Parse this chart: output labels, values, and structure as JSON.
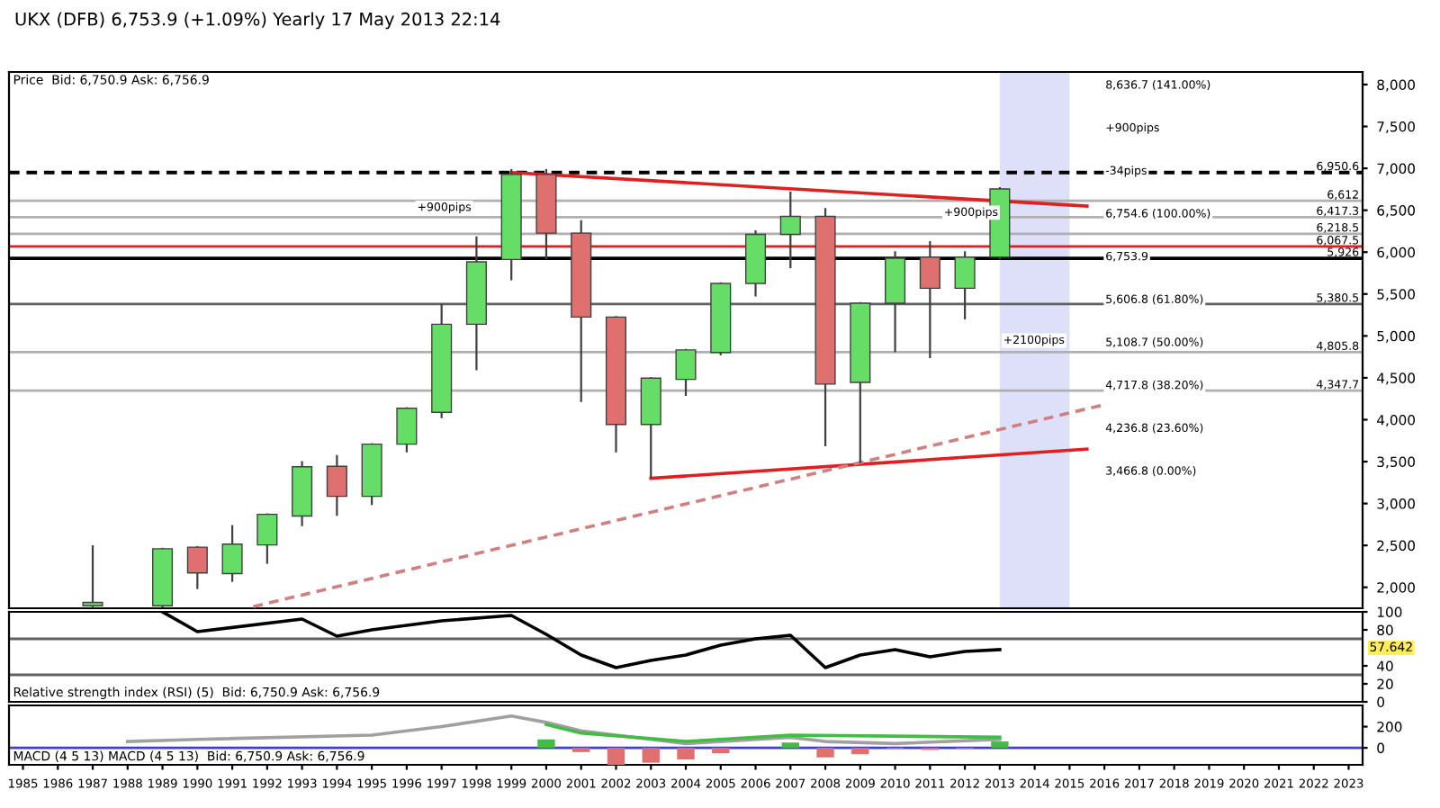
{
  "chart_data": [
    {
      "type": "candlestick",
      "title": "UKX (DFB) 6,753.9 (+1.09%) Yearly 17 May 2013 22:14",
      "subtitle": "Price  Bid: 6,750.9 Ask: 6,756.9",
      "x": [
        1987,
        1989,
        1990,
        1991,
        1992,
        1993,
        1994,
        1995,
        1996,
        1997,
        1998,
        1999,
        2000,
        2001,
        2002,
        2003,
        2004,
        2005,
        2006,
        2007,
        2008,
        2009,
        2010,
        2011,
        2012,
        2013
      ],
      "ohlc": [
        [
          1780,
          2490,
          1760,
          1820
        ],
        [
          1780,
          2460,
          1770,
          2460
        ],
        [
          2479,
          2479,
          1991,
          2172
        ],
        [
          2163,
          2730,
          2077,
          2515
        ],
        [
          2506,
          2871,
          2292,
          2871
        ],
        [
          2850,
          3494,
          2742,
          3438
        ],
        [
          3444,
          3567,
          2865,
          3086
        ],
        [
          3086,
          3708,
          2994,
          3708
        ],
        [
          3708,
          4137,
          3622,
          4137
        ],
        [
          4088,
          5369,
          4030,
          5139
        ],
        [
          5139,
          6176,
          4603,
          5884
        ],
        [
          5912,
          6979,
          5676,
          6927
        ],
        [
          6927,
          6979,
          5927,
          6227
        ],
        [
          6227,
          6369,
          4223,
          5225
        ],
        [
          5225,
          5225,
          3622,
          3944
        ],
        [
          3944,
          4496,
          3316,
          4496
        ],
        [
          4481,
          4833,
          4296,
          4833
        ],
        [
          4803,
          5627,
          4781,
          5627
        ],
        [
          5627,
          6249,
          5483,
          6212
        ],
        [
          6212,
          6712,
          5820,
          6427
        ],
        [
          6427,
          6513,
          3695,
          4425
        ],
        [
          4446,
          5391,
          3494,
          5391
        ],
        [
          5391,
          5998,
          4818,
          5927
        ],
        [
          5940,
          6120,
          4747,
          5569
        ],
        [
          5569,
          5998,
          5210,
          5940
        ],
        [
          5940,
          6764,
          5925,
          6754
        ]
      ],
      "colors": [
        "#66dd66",
        "#66dd66",
        "#e07070",
        "#66dd66",
        "#66dd66",
        "#66dd66",
        "#e07070",
        "#66dd66",
        "#66dd66",
        "#66dd66",
        "#66dd66",
        "#66dd66",
        "#e07070",
        "#e07070",
        "#e07070",
        "#66dd66",
        "#66dd66",
        "#66dd66",
        "#66dd66",
        "#66dd66",
        "#e07070",
        "#66dd66",
        "#66dd66",
        "#e07070",
        "#66dd66",
        "#66dd66"
      ],
      "series": [
        {
          "type": "line",
          "color": "#e02020",
          "x": [
            1999,
            2015.5
          ],
          "values": [
            6950,
            6550
          ],
          "line_style": "solid"
        },
        {
          "type": "line",
          "color": "#e02020",
          "x": [
            2003,
            2015.5
          ],
          "values": [
            3300,
            3650
          ],
          "line_style": "solid"
        },
        {
          "type": "line",
          "color": "#d08080",
          "x": [
            1991.6,
            2015.9
          ],
          "values": [
            1770,
            4170
          ],
          "line_style": "dashed"
        }
      ],
      "ref_lines": [
        {
          "axis": "y",
          "value": 6950.6,
          "label": "6,950.6",
          "color": "#000000",
          "line_style": "dashed"
        },
        {
          "axis": "y",
          "value": 6612,
          "label": "6,612",
          "color": "#b0b0b0",
          "line_style": "solid"
        },
        {
          "axis": "y",
          "value": 6417.3,
          "label": "6,417.3",
          "color": "#b0b0b0",
          "line_style": "solid"
        },
        {
          "axis": "y",
          "value": 6218.5,
          "label": "6,218.5",
          "color": "#b0b0b0",
          "line_style": "solid"
        },
        {
          "axis": "y",
          "value": 6067.5,
          "label": "6,067.5",
          "color": "#e02020",
          "line_style": "solid"
        },
        {
          "axis": "y",
          "value": 5926,
          "label": "5,926",
          "color": "#000000",
          "line_style": "solid"
        },
        {
          "axis": "y",
          "value": 5380.5,
          "label": "5,380.5",
          "color": "#606060",
          "line_style": "solid"
        },
        {
          "axis": "y",
          "value": 4805.8,
          "label": "4,805.8",
          "color": "#b0b0b0",
          "line_style": "solid"
        },
        {
          "axis": "y",
          "value": 4347.7,
          "label": "4,347.7",
          "color": "#b0b0b0",
          "line_style": "solid"
        }
      ],
      "bands": [
        {
          "axis": "x",
          "from": 2013,
          "to": 2015,
          "color": "#dde0f8"
        }
      ],
      "annotations": [
        "8,636.7 (141.00%)",
        "+900pips",
        "-34pips",
        "6,754.6 (100.00%)",
        "6,753.9",
        "5,606.8 (61.80%)",
        "5,108.7 (50.00%)",
        "4,717.8 (38.20%)",
        "4,236.8 (23.60%)",
        "3,466.8 (0.00%)",
        {
          "text": "+900pips",
          "x": 1996.3,
          "y": 6530
        },
        {
          "text": "+900pips",
          "x": 2011.4,
          "y": 6470
        },
        {
          "text": "+2100pips",
          "x": 2013.1,
          "y": 4945
        }
      ],
      "xlim": [
        1984.6,
        2023.4
      ],
      "ylim": [
        1750,
        8150
      ],
      "yticks": [
        {
          "value": 2000,
          "label": "2,000"
        },
        {
          "value": 2500,
          "label": "2,500"
        },
        {
          "value": 3000,
          "label": "3,000"
        },
        {
          "value": 3500,
          "label": "3,500"
        },
        {
          "value": 4000,
          "label": "4,000"
        },
        {
          "value": 4500,
          "label": "4,500"
        },
        {
          "value": 5000,
          "label": "5,000"
        },
        {
          "value": 5500,
          "label": "5,500"
        },
        {
          "value": 6000,
          "label": "6,000"
        },
        {
          "value": 6500,
          "label": "6,500"
        },
        {
          "value": 7000,
          "label": "7,000"
        },
        {
          "value": 7500,
          "label": "7,500"
        },
        {
          "value": 8000,
          "label": "8,000"
        }
      ],
      "tick_labels": "y",
      "grid": false
    },
    {
      "type": "line",
      "title": "Relative strength index (RSI) (5)  Bid: 6,750.9 Ask: 6,756.9",
      "x": [
        1989,
        1990,
        1993,
        1994,
        1995,
        1997,
        1999,
        2000,
        2001,
        2002,
        2003,
        2004,
        2005,
        2006,
        2007,
        2008,
        2009,
        2010,
        2011,
        2012,
        2013
      ],
      "series": [
        {
          "color": "#000000",
          "values": [
            100,
            78,
            92,
            73,
            80,
            90,
            96,
            75,
            52,
            38,
            46,
            52,
            63,
            70,
            74,
            38,
            52,
            58,
            50,
            56,
            58
          ]
        }
      ],
      "ref_lines": [
        {
          "axis": "y",
          "value": 70,
          "label": null,
          "color": "#606060",
          "line_style": "solid"
        },
        {
          "axis": "y",
          "value": 30,
          "label": null,
          "color": "#606060",
          "line_style": "solid"
        }
      ],
      "annotations": [
        "57.642"
      ],
      "xlim": [
        1984.6,
        2023.4
      ],
      "ylim": [
        0,
        100
      ],
      "yticks": [
        0,
        20,
        40,
        80,
        100
      ],
      "tick_labels": "y",
      "grid": false
    },
    {
      "type": "bar",
      "title": "MACD (4 5 13) MACD (4 5 13)  Bid: 6,750.9 Ask: 6,756.9",
      "series": [
        {
          "type": "bar",
          "x": [
            2000,
            2001,
            2002,
            2003,
            2004,
            2005,
            2007,
            2008,
            2009,
            2010,
            2011,
            2012,
            2013
          ],
          "values": [
            80,
            -40,
            -160,
            -140,
            -110,
            -50,
            50,
            -90,
            -60,
            -10,
            -20,
            -10,
            60
          ],
          "colors": [
            "#44bb44",
            "#e07070",
            "#e07070",
            "#e07070",
            "#e07070",
            "#e07070",
            "#44bb44",
            "#e07070",
            "#e07070",
            "#e07070",
            "#e07070",
            "#e07070",
            "#44bb44"
          ]
        },
        {
          "type": "line",
          "color": "#a0a0a0",
          "x": [
            1988,
            1990,
            1995,
            1997,
            1999,
            2000,
            2001,
            2002,
            2004,
            2007,
            2008,
            2010,
            2013
          ],
          "values": [
            60,
            80,
            120,
            200,
            300,
            240,
            160,
            120,
            40,
            100,
            60,
            40,
            80
          ]
        },
        {
          "type": "line",
          "color": "#44bb44",
          "x": [
            2000,
            2001,
            2004,
            2007,
            2013
          ],
          "values": [
            220,
            140,
            60,
            120,
            100
          ]
        }
      ],
      "ref_lines": [
        {
          "axis": "y",
          "value": 0,
          "label": null,
          "color": "#4040c0",
          "line_style": "solid"
        }
      ],
      "xlim": [
        1984.6,
        2023.4
      ],
      "ylim": [
        -160,
        400
      ],
      "yticks": [
        0,
        200
      ],
      "xticks": [
        1985,
        1986,
        1987,
        1988,
        1989,
        1990,
        1991,
        1992,
        1993,
        1994,
        1995,
        1996,
        1997,
        1998,
        1999,
        2000,
        2001,
        2002,
        2003,
        2004,
        2005,
        2006,
        2007,
        2008,
        2009,
        2010,
        2011,
        2012,
        2013,
        2014,
        2015,
        2016,
        2017,
        2018,
        2019,
        2020,
        2021,
        2022,
        2023
      ],
      "grid": false
    }
  ]
}
